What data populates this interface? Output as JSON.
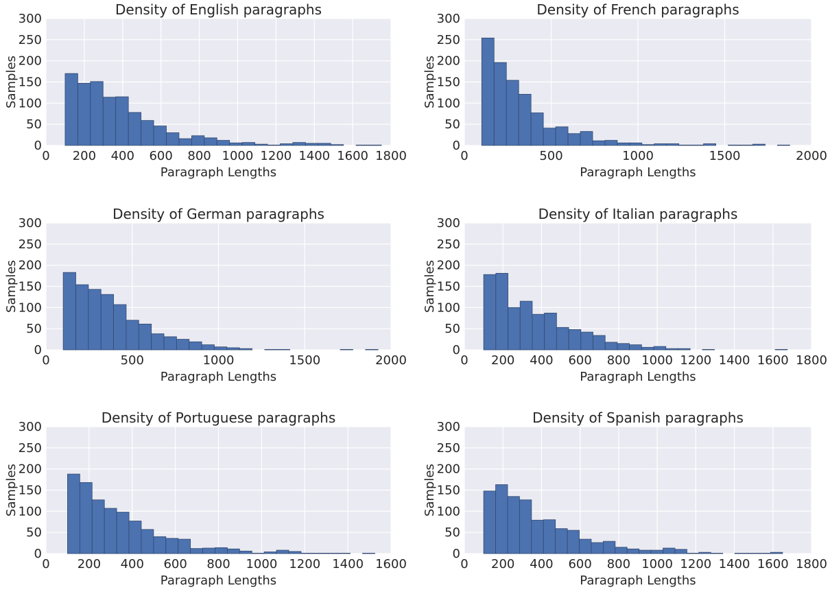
{
  "chart_data": [
    {
      "type": "histogram",
      "title": "Density of English paragraphs",
      "xlabel": "Paragraph Lengths",
      "ylabel": "Samples",
      "xlim": [
        0,
        1800
      ],
      "ylim": [
        0,
        300
      ],
      "xticks": [
        0,
        200,
        400,
        600,
        800,
        1000,
        1200,
        1400,
        1600,
        1800
      ],
      "yticks": [
        0,
        50,
        100,
        150,
        200,
        250,
        300
      ],
      "grid": true,
      "bin_edges": [
        100,
        166,
        232,
        298,
        364,
        430,
        496,
        562,
        628,
        694,
        760,
        826,
        892,
        958,
        1024,
        1090,
        1156,
        1222,
        1288,
        1354,
        1420,
        1486,
        1552,
        1618,
        1684,
        1750
      ],
      "values": [
        170,
        147,
        151,
        114,
        115,
        78,
        59,
        46,
        30,
        16,
        23,
        18,
        12,
        6,
        7,
        3,
        1,
        4,
        7,
        5,
        5,
        2,
        0,
        1,
        1
      ]
    },
    {
      "type": "histogram",
      "title": "Density of French paragraphs",
      "xlabel": "Paragraph Lengths",
      "ylabel": "Samples",
      "xlim": [
        0,
        2000
      ],
      "ylim": [
        0,
        300
      ],
      "xticks": [
        0,
        500,
        1000,
        1500,
        2000
      ],
      "yticks": [
        0,
        50,
        100,
        150,
        200,
        250,
        300
      ],
      "grid": true,
      "bin_edges": [
        100,
        171,
        242,
        313,
        384,
        455,
        526,
        597,
        668,
        739,
        810,
        881,
        952,
        1023,
        1094,
        1165,
        1236,
        1307,
        1378,
        1449,
        1520,
        1591,
        1662,
        1733,
        1804,
        1875
      ],
      "values": [
        254,
        196,
        154,
        121,
        77,
        41,
        44,
        28,
        33,
        11,
        12,
        6,
        6,
        2,
        4,
        4,
        1,
        1,
        4,
        0,
        1,
        1,
        3,
        0,
        1
      ]
    },
    {
      "type": "histogram",
      "title": "Density of German paragraphs",
      "xlabel": "Paragraph Lengths",
      "ylabel": "Samples",
      "xlim": [
        0,
        2000
      ],
      "ylim": [
        0,
        300
      ],
      "xticks": [
        0,
        500,
        1000,
        1500,
        2000
      ],
      "yticks": [
        0,
        50,
        100,
        150,
        200,
        250,
        300
      ],
      "grid": true,
      "bin_edges": [
        100,
        173,
        246,
        319,
        392,
        465,
        538,
        611,
        684,
        757,
        830,
        903,
        976,
        1049,
        1122,
        1195,
        1268,
        1341,
        1414,
        1487,
        1560,
        1633,
        1706,
        1779,
        1852,
        1925
      ],
      "values": [
        183,
        154,
        143,
        131,
        107,
        70,
        61,
        38,
        31,
        25,
        19,
        12,
        7,
        5,
        3,
        0,
        1,
        1,
        0,
        0,
        0,
        0,
        1,
        0,
        1
      ]
    },
    {
      "type": "histogram",
      "title": "Density of Italian paragraphs",
      "xlabel": "Paragraph Lengths",
      "ylabel": "Samples",
      "xlim": [
        0,
        1800
      ],
      "ylim": [
        0,
        300
      ],
      "xticks": [
        0,
        200,
        400,
        600,
        800,
        1000,
        1200,
        1400,
        1600,
        1800
      ],
      "yticks": [
        0,
        50,
        100,
        150,
        200,
        250,
        300
      ],
      "grid": true,
      "bin_edges": [
        100,
        163,
        226,
        289,
        352,
        415,
        478,
        541,
        604,
        667,
        730,
        793,
        856,
        919,
        982,
        1045,
        1108,
        1171,
        1234,
        1297,
        1360,
        1423,
        1486,
        1549,
        1612,
        1675
      ],
      "values": [
        178,
        181,
        100,
        115,
        84,
        87,
        53,
        48,
        42,
        34,
        18,
        15,
        12,
        6,
        8,
        3,
        3,
        0,
        1,
        0,
        0,
        0,
        0,
        0,
        1
      ]
    },
    {
      "type": "histogram",
      "title": "Density of Portuguese paragraphs",
      "xlabel": "Paragraph Lengths",
      "ylabel": "Samples",
      "xlim": [
        0,
        1600
      ],
      "ylim": [
        0,
        300
      ],
      "xticks": [
        0,
        200,
        400,
        600,
        800,
        1000,
        1200,
        1400,
        1600
      ],
      "yticks": [
        0,
        50,
        100,
        150,
        200,
        250,
        300
      ],
      "grid": true,
      "bin_edges": [
        100,
        157,
        214,
        271,
        328,
        385,
        442,
        499,
        556,
        613,
        670,
        727,
        784,
        841,
        898,
        955,
        1012,
        1069,
        1126,
        1183,
        1240,
        1297,
        1354,
        1411,
        1468,
        1525
      ],
      "values": [
        188,
        168,
        127,
        107,
        98,
        77,
        57,
        40,
        36,
        34,
        12,
        13,
        14,
        11,
        6,
        1,
        4,
        8,
        5,
        1,
        1,
        1,
        1,
        0,
        1
      ]
    },
    {
      "type": "histogram",
      "title": "Density of Spanish paragraphs",
      "xlabel": "Paragraph Lengths",
      "ylabel": "Samples",
      "xlim": [
        0,
        1800
      ],
      "ylim": [
        0,
        300
      ],
      "xticks": [
        0,
        200,
        400,
        600,
        800,
        1000,
        1200,
        1400,
        1600,
        1800
      ],
      "yticks": [
        0,
        50,
        100,
        150,
        200,
        250,
        300
      ],
      "grid": true,
      "bin_edges": [
        100,
        162,
        224,
        286,
        348,
        410,
        472,
        534,
        596,
        658,
        720,
        782,
        844,
        906,
        968,
        1030,
        1092,
        1154,
        1216,
        1278,
        1340,
        1402,
        1464,
        1526,
        1588,
        1650
      ],
      "values": [
        148,
        163,
        135,
        127,
        79,
        80,
        59,
        55,
        34,
        26,
        29,
        15,
        11,
        8,
        8,
        13,
        10,
        1,
        3,
        1,
        0,
        1,
        1,
        1,
        3
      ]
    }
  ],
  "style": {
    "axes_background": "#eaeaf2",
    "grid_color": "#ffffff",
    "bar_fill": "#4c72b0",
    "bar_edge": "#32496f"
  }
}
